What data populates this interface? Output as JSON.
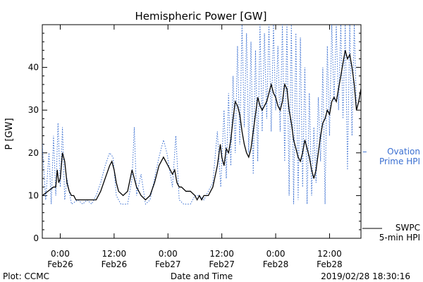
{
  "chart_data": {
    "type": "line",
    "title": "Hemispheric Power [GW]",
    "xlabel": "Date and Time",
    "ylabel": "P [GW]",
    "xlim": [
      "2019-02-25T20:00",
      "2019-02-28T19:00"
    ],
    "ylim": [
      0,
      50
    ],
    "yticks": [
      0,
      10,
      20,
      30,
      40
    ],
    "xticks": [
      {
        "at": "2019-02-26T00:00",
        "time": "0:00",
        "date": "Feb26"
      },
      {
        "at": "2019-02-26T12:00",
        "time": "12:00",
        "date": "Feb26"
      },
      {
        "at": "2019-02-27T00:00",
        "time": "0:00",
        "date": "Feb27"
      },
      {
        "at": "2019-02-27T12:00",
        "time": "12:00",
        "date": "Feb27"
      },
      {
        "at": "2019-02-28T00:00",
        "time": "0:00",
        "date": "Feb28"
      },
      {
        "at": "2019-02-28T12:00",
        "time": "12:00",
        "date": "Feb28"
      }
    ],
    "grid": false,
    "legend_position": "right",
    "series": [
      {
        "name": "Ovation Prime HPI",
        "style": "dotted",
        "color": "#3a6fd1",
        "points": [
          [
            "2019-02-25T20:00",
            22
          ],
          [
            "2019-02-25T20:45",
            9
          ],
          [
            "2019-02-25T21:30",
            20
          ],
          [
            "2019-02-25T22:00",
            8
          ],
          [
            "2019-02-25T22:30",
            24
          ],
          [
            "2019-02-25T23:00",
            10
          ],
          [
            "2019-02-25T23:30",
            27
          ],
          [
            "2019-02-26T00:00",
            12
          ],
          [
            "2019-02-26T00:30",
            26
          ],
          [
            "2019-02-26T01:00",
            9
          ],
          [
            "2019-02-26T01:30",
            14
          ],
          [
            "2019-02-26T02:30",
            8
          ],
          [
            "2019-02-26T04:00",
            9
          ],
          [
            "2019-02-26T05:00",
            8
          ],
          [
            "2019-02-26T06:00",
            9
          ],
          [
            "2019-02-26T07:00",
            8
          ],
          [
            "2019-02-26T08:00",
            10
          ],
          [
            "2019-02-26T09:00",
            13
          ],
          [
            "2019-02-26T10:00",
            17
          ],
          [
            "2019-02-26T11:00",
            20
          ],
          [
            "2019-02-26T11:45",
            19
          ],
          [
            "2019-02-26T12:30",
            10
          ],
          [
            "2019-02-26T13:30",
            8
          ],
          [
            "2019-02-26T15:00",
            8
          ],
          [
            "2019-02-26T16:00",
            14
          ],
          [
            "2019-02-26T16:30",
            26
          ],
          [
            "2019-02-26T17:00",
            10
          ],
          [
            "2019-02-26T18:00",
            15
          ],
          [
            "2019-02-26T19:00",
            8
          ],
          [
            "2019-02-26T20:00",
            9
          ],
          [
            "2019-02-26T21:00",
            14
          ],
          [
            "2019-02-26T22:00",
            19
          ],
          [
            "2019-02-26T23:00",
            23
          ],
          [
            "2019-02-26T23:45",
            20
          ],
          [
            "2019-02-27T01:00",
            12
          ],
          [
            "2019-02-27T01:45",
            24
          ],
          [
            "2019-02-27T02:30",
            9
          ],
          [
            "2019-02-27T03:30",
            8
          ],
          [
            "2019-02-27T05:00",
            8
          ],
          [
            "2019-02-27T06:00",
            10
          ],
          [
            "2019-02-27T07:00",
            10
          ],
          [
            "2019-02-27T08:00",
            9
          ],
          [
            "2019-02-27T09:00",
            11
          ],
          [
            "2019-02-27T10:00",
            13
          ],
          [
            "2019-02-27T11:00",
            25
          ],
          [
            "2019-02-27T11:45",
            12
          ],
          [
            "2019-02-27T12:30",
            30
          ],
          [
            "2019-02-27T13:00",
            14
          ],
          [
            "2019-02-27T13:30",
            34
          ],
          [
            "2019-02-27T14:00",
            17
          ],
          [
            "2019-02-27T14:30",
            38
          ],
          [
            "2019-02-27T15:00",
            20
          ],
          [
            "2019-02-27T15:30",
            45
          ],
          [
            "2019-02-27T16:00",
            22
          ],
          [
            "2019-02-27T16:30",
            50
          ],
          [
            "2019-02-27T17:00",
            26
          ],
          [
            "2019-02-27T17:30",
            48
          ],
          [
            "2019-02-27T18:00",
            20
          ],
          [
            "2019-02-27T18:30",
            46
          ],
          [
            "2019-02-27T19:00",
            15
          ],
          [
            "2019-02-27T19:30",
            44
          ],
          [
            "2019-02-27T20:00",
            18
          ],
          [
            "2019-02-27T20:30",
            50
          ],
          [
            "2019-02-27T21:00",
            25
          ],
          [
            "2019-02-27T21:30",
            48
          ],
          [
            "2019-02-27T22:00",
            28
          ],
          [
            "2019-02-27T22:30",
            50
          ],
          [
            "2019-02-27T23:00",
            25
          ],
          [
            "2019-02-27T23:30",
            50
          ],
          [
            "2019-02-28T00:00",
            30
          ],
          [
            "2019-02-28T00:30",
            45
          ],
          [
            "2019-02-28T01:00",
            25
          ],
          [
            "2019-02-28T01:30",
            50
          ],
          [
            "2019-02-28T02:00",
            18
          ],
          [
            "2019-02-28T02:30",
            50
          ],
          [
            "2019-02-28T03:00",
            10
          ],
          [
            "2019-02-28T03:30",
            50
          ],
          [
            "2019-02-28T04:00",
            8
          ],
          [
            "2019-02-28T04:30",
            48
          ],
          [
            "2019-02-28T05:00",
            9
          ],
          [
            "2019-02-28T05:30",
            47
          ],
          [
            "2019-02-28T06:00",
            12
          ],
          [
            "2019-02-28T06:30",
            40
          ],
          [
            "2019-02-28T07:00",
            8
          ],
          [
            "2019-02-28T07:30",
            34
          ],
          [
            "2019-02-28T08:00",
            10
          ],
          [
            "2019-02-28T08:30",
            26
          ],
          [
            "2019-02-28T09:00",
            13
          ],
          [
            "2019-02-28T09:30",
            33
          ],
          [
            "2019-02-28T10:00",
            18
          ],
          [
            "2019-02-28T10:30",
            40
          ],
          [
            "2019-02-28T11:00",
            8
          ],
          [
            "2019-02-28T11:30",
            45
          ],
          [
            "2019-02-28T12:00",
            24
          ],
          [
            "2019-02-28T12:30",
            50
          ],
          [
            "2019-02-28T13:00",
            32
          ],
          [
            "2019-02-28T13:30",
            50
          ],
          [
            "2019-02-28T14:00",
            30
          ],
          [
            "2019-02-28T14:30",
            50
          ],
          [
            "2019-02-28T15:00",
            28
          ],
          [
            "2019-02-28T15:30",
            50
          ],
          [
            "2019-02-28T16:00",
            16
          ],
          [
            "2019-02-28T16:30",
            50
          ],
          [
            "2019-02-28T17:00",
            24
          ],
          [
            "2019-02-28T17:30",
            50
          ],
          [
            "2019-02-28T18:00",
            30
          ],
          [
            "2019-02-28T18:45",
            33
          ]
        ]
      },
      {
        "name": "SWPC 5-min HPI",
        "style": "solid",
        "color": "#000000",
        "points": [
          [
            "2019-02-25T20:00",
            10
          ],
          [
            "2019-02-25T22:30",
            12
          ],
          [
            "2019-02-25T23:00",
            12
          ],
          [
            "2019-02-25T23:20",
            16
          ],
          [
            "2019-02-25T23:40",
            13
          ],
          [
            "2019-02-26T00:00",
            14
          ],
          [
            "2019-02-26T00:30",
            20
          ],
          [
            "2019-02-26T01:00",
            18
          ],
          [
            "2019-02-26T01:30",
            13
          ],
          [
            "2019-02-26T02:00",
            11
          ],
          [
            "2019-02-26T02:30",
            10
          ],
          [
            "2019-02-26T03:00",
            10
          ],
          [
            "2019-02-26T03:30",
            9
          ],
          [
            "2019-02-26T08:00",
            9
          ],
          [
            "2019-02-26T09:00",
            11
          ],
          [
            "2019-02-26T10:00",
            14
          ],
          [
            "2019-02-26T11:00",
            17
          ],
          [
            "2019-02-26T11:30",
            18
          ],
          [
            "2019-02-26T12:00",
            16
          ],
          [
            "2019-02-26T12:30",
            13
          ],
          [
            "2019-02-26T13:00",
            11
          ],
          [
            "2019-02-26T14:00",
            10
          ],
          [
            "2019-02-26T15:00",
            11
          ],
          [
            "2019-02-26T16:00",
            16
          ],
          [
            "2019-02-26T16:30",
            14
          ],
          [
            "2019-02-26T17:00",
            12
          ],
          [
            "2019-02-26T18:00",
            10
          ],
          [
            "2019-02-26T19:00",
            9
          ],
          [
            "2019-02-26T20:00",
            10
          ],
          [
            "2019-02-26T21:00",
            13
          ],
          [
            "2019-02-26T22:00",
            17
          ],
          [
            "2019-02-26T23:00",
            19
          ],
          [
            "2019-02-26T23:30",
            18
          ],
          [
            "2019-02-27T00:00",
            17
          ],
          [
            "2019-02-27T01:00",
            15
          ],
          [
            "2019-02-27T01:30",
            16
          ],
          [
            "2019-02-27T02:00",
            13
          ],
          [
            "2019-02-27T02:30",
            12
          ],
          [
            "2019-02-27T03:00",
            12
          ],
          [
            "2019-02-27T04:00",
            11
          ],
          [
            "2019-02-27T05:00",
            11
          ],
          [
            "2019-02-27T06:00",
            10
          ],
          [
            "2019-02-27T06:30",
            9
          ],
          [
            "2019-02-27T07:00",
            10
          ],
          [
            "2019-02-27T07:30",
            9
          ],
          [
            "2019-02-27T08:00",
            10
          ],
          [
            "2019-02-27T09:00",
            10
          ],
          [
            "2019-02-27T10:00",
            12
          ],
          [
            "2019-02-27T11:00",
            17
          ],
          [
            "2019-02-27T11:40",
            22
          ],
          [
            "2019-02-27T12:00",
            19
          ],
          [
            "2019-02-27T12:30",
            17
          ],
          [
            "2019-02-27T13:00",
            21
          ],
          [
            "2019-02-27T13:30",
            20
          ],
          [
            "2019-02-27T14:00",
            23
          ],
          [
            "2019-02-27T14:30",
            28
          ],
          [
            "2019-02-27T15:00",
            32
          ],
          [
            "2019-02-27T15:30",
            31
          ],
          [
            "2019-02-27T16:00",
            29
          ],
          [
            "2019-02-27T16:30",
            25
          ],
          [
            "2019-02-27T17:00",
            22
          ],
          [
            "2019-02-27T17:30",
            20
          ],
          [
            "2019-02-27T18:00",
            19
          ],
          [
            "2019-02-27T18:30",
            21
          ],
          [
            "2019-02-27T19:00",
            25
          ],
          [
            "2019-02-27T19:30",
            29
          ],
          [
            "2019-02-27T20:00",
            33
          ],
          [
            "2019-02-27T20:30",
            31
          ],
          [
            "2019-02-27T21:00",
            30
          ],
          [
            "2019-02-27T22:00",
            32
          ],
          [
            "2019-02-27T22:30",
            34
          ],
          [
            "2019-02-27T23:00",
            36
          ],
          [
            "2019-02-27T23:30",
            34
          ],
          [
            "2019-02-28T00:00",
            33
          ],
          [
            "2019-02-28T00:30",
            31
          ],
          [
            "2019-02-28T01:00",
            30
          ],
          [
            "2019-02-28T01:30",
            32
          ],
          [
            "2019-02-28T02:00",
            36
          ],
          [
            "2019-02-28T02:30",
            35
          ],
          [
            "2019-02-28T03:00",
            30
          ],
          [
            "2019-02-28T03:30",
            27
          ],
          [
            "2019-02-28T04:00",
            23
          ],
          [
            "2019-02-28T04:30",
            21
          ],
          [
            "2019-02-28T05:00",
            19
          ],
          [
            "2019-02-28T05:30",
            18
          ],
          [
            "2019-02-28T06:00",
            20
          ],
          [
            "2019-02-28T06:30",
            23
          ],
          [
            "2019-02-28T07:00",
            21
          ],
          [
            "2019-02-28T07:30",
            19
          ],
          [
            "2019-02-28T08:00",
            16
          ],
          [
            "2019-02-28T08:30",
            14
          ],
          [
            "2019-02-28T09:00",
            16
          ],
          [
            "2019-02-28T09:30",
            20
          ],
          [
            "2019-02-28T10:00",
            24
          ],
          [
            "2019-02-28T10:30",
            27
          ],
          [
            "2019-02-28T11:00",
            28
          ],
          [
            "2019-02-28T11:30",
            30
          ],
          [
            "2019-02-28T12:00",
            29
          ],
          [
            "2019-02-28T12:30",
            32
          ],
          [
            "2019-02-28T13:00",
            33
          ],
          [
            "2019-02-28T13:30",
            32
          ],
          [
            "2019-02-28T14:00",
            35
          ],
          [
            "2019-02-28T14:30",
            38
          ],
          [
            "2019-02-28T15:00",
            41
          ],
          [
            "2019-02-28T15:30",
            44
          ],
          [
            "2019-02-28T16:00",
            42
          ],
          [
            "2019-02-28T16:30",
            43
          ],
          [
            "2019-02-28T17:00",
            40
          ],
          [
            "2019-02-28T17:30",
            36
          ],
          [
            "2019-02-28T18:00",
            30
          ],
          [
            "2019-02-28T18:30",
            32
          ],
          [
            "2019-02-28T19:00",
            35
          ]
        ]
      }
    ],
    "legend": [
      {
        "series": "Ovation Prime HPI",
        "lines": [
          "Ovation",
          "Prime HPI"
        ]
      },
      {
        "series": "SWPC 5-min HPI",
        "lines": [
          "SWPC",
          "5-min HPI"
        ]
      }
    ],
    "footer": {
      "left": "Plot: CCMC",
      "right": "2019/02/28 18:30:16"
    }
  }
}
